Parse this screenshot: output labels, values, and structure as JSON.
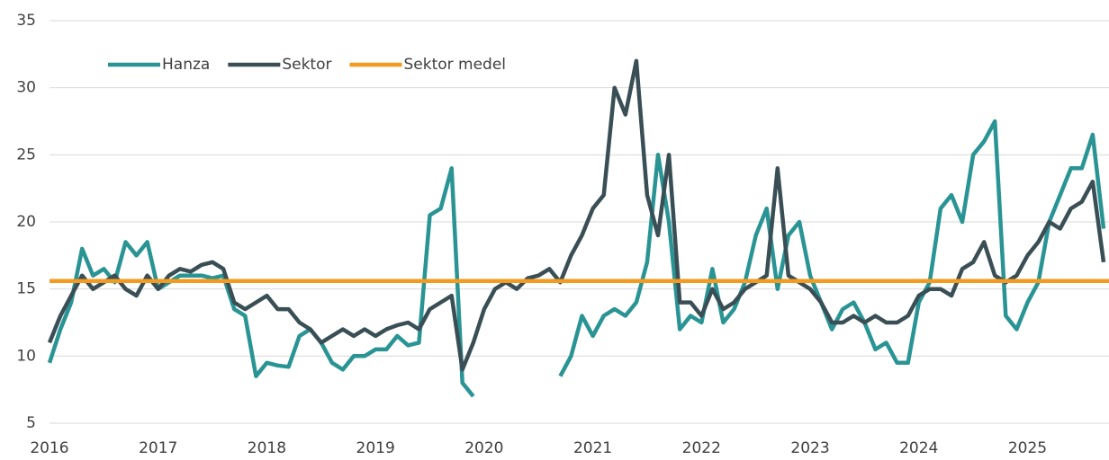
{
  "chart_data": {
    "type": "line",
    "x": [
      2016,
      2016.1,
      2016.2,
      2016.3,
      2016.4,
      2016.5,
      2016.6,
      2016.7,
      2016.8,
      2016.9,
      2017,
      2017.1,
      2017.2,
      2017.3,
      2017.4,
      2017.5,
      2017.6,
      2017.7,
      2017.8,
      2017.9,
      2018,
      2018.1,
      2018.2,
      2018.3,
      2018.4,
      2018.5,
      2018.6,
      2018.7,
      2018.8,
      2018.9,
      2019,
      2019.1,
      2019.2,
      2019.3,
      2019.4,
      2019.5,
      2019.6,
      2019.7,
      2019.8,
      2019.9,
      2020,
      2020.1,
      2020.2,
      2020.3,
      2020.4,
      2020.5,
      2020.6,
      2020.7,
      2020.8,
      2020.9,
      2021,
      2021.1,
      2021.2,
      2021.3,
      2021.4,
      2021.5,
      2021.6,
      2021.7,
      2021.8,
      2021.9,
      2022,
      2022.1,
      2022.2,
      2022.3,
      2022.4,
      2022.5,
      2022.6,
      2022.7,
      2022.8,
      2022.9,
      2023,
      2023.1,
      2023.2,
      2023.3,
      2023.4,
      2023.5,
      2023.6,
      2023.7,
      2023.8,
      2023.9,
      2024,
      2024.1,
      2024.2,
      2024.3,
      2024.4,
      2024.5,
      2024.6,
      2024.7,
      2024.8,
      2024.9,
      2025,
      2025.1,
      2025.2,
      2025.3,
      2025.4,
      2025.5,
      2025.6,
      2025.7
    ],
    "series": [
      {
        "name": "Hanza",
        "color": "#2a9494",
        "values": [
          9.5,
          12,
          14,
          18,
          16,
          16.5,
          15.5,
          18.5,
          17.5,
          18.5,
          15,
          15.5,
          16,
          16,
          16,
          15.8,
          16,
          13.5,
          13,
          8.5,
          9.5,
          9.3,
          9.2,
          11.5,
          12,
          11,
          9.5,
          9,
          10,
          10,
          10.5,
          10.5,
          11.5,
          10.8,
          11,
          20.5,
          21,
          24,
          8,
          7,
          null,
          null,
          null,
          null,
          null,
          null,
          null,
          8.5,
          10,
          13,
          11.5,
          13,
          13.5,
          13,
          14,
          17,
          25,
          20,
          12,
          13,
          12.5,
          16.5,
          12.5,
          13.5,
          15.5,
          19,
          21,
          15,
          19,
          20,
          16,
          14,
          12,
          13.5,
          14,
          12.5,
          10.5,
          11,
          9.5,
          9.5,
          14,
          15.5,
          21,
          22,
          20,
          25,
          26,
          27.5,
          13,
          12,
          14,
          15.5,
          20,
          22,
          24,
          24,
          26.5,
          19.5
        ]
      },
      {
        "name": "Sektor",
        "color": "#3a4f55",
        "values": [
          11,
          13,
          14.5,
          16,
          15,
          15.5,
          16,
          15,
          14.5,
          16,
          15,
          16,
          16.5,
          16.3,
          16.8,
          17,
          16.5,
          14,
          13.5,
          14,
          14.5,
          13.5,
          13.5,
          12.5,
          12,
          11,
          11.5,
          12,
          11.5,
          12,
          11.5,
          12,
          12.3,
          12.5,
          12,
          13.5,
          14,
          14.5,
          9,
          11,
          13.5,
          15,
          15.5,
          15,
          15.8,
          16,
          16.5,
          15.5,
          17.5,
          19,
          21,
          22,
          30,
          28,
          32,
          22,
          19,
          25,
          14,
          14,
          13,
          15,
          13.5,
          14,
          15,
          15.5,
          16,
          24,
          16,
          15.5,
          15,
          14,
          12.5,
          12.5,
          13,
          12.5,
          13,
          12.5,
          12.5,
          13,
          14.5,
          15,
          15,
          14.5,
          16.5,
          17,
          18.5,
          16,
          15.5,
          16,
          17.5,
          18.5,
          20,
          19.5,
          21,
          21.5,
          23,
          17
        ]
      },
      {
        "name": "Sektor medel",
        "color": "#f39a1f",
        "x": [
          2016,
          2025.75
        ],
        "values": [
          15.6,
          15.6
        ]
      }
    ],
    "xlim": [
      2016,
      2025.75
    ],
    "xticks": [
      2016,
      2017,
      2018,
      2019,
      2020,
      2021,
      2022,
      2023,
      2024,
      2025
    ],
    "ylim": [
      5,
      35
    ],
    "yticks": [
      5,
      10,
      15,
      20,
      25,
      30,
      35
    ],
    "grid": true,
    "legend": "top-left"
  }
}
